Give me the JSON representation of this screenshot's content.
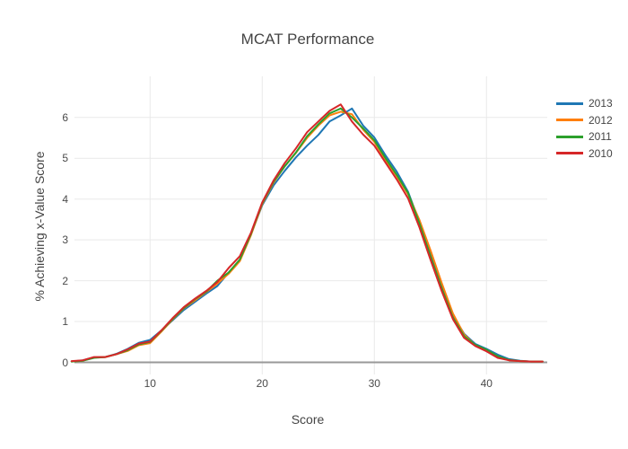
{
  "chart_data": {
    "type": "line",
    "title": "MCAT Performance",
    "xlabel": "Score",
    "ylabel": "% Achieving x-Value Score",
    "legend_position": "right",
    "grid": true,
    "xlim": [
      2.6,
      45.6
    ],
    "ylim": [
      -0.3,
      7.0
    ],
    "xticks": [
      10,
      20,
      30,
      40
    ],
    "yticks": [
      0,
      1,
      2,
      3,
      4,
      5,
      6
    ],
    "colors": {
      "background": "#ffffff",
      "grid": "#e9e9e9",
      "zero_line": "#999999",
      "text": "#444444"
    },
    "x": [
      3,
      4,
      5,
      6,
      7,
      8,
      9,
      10,
      11,
      12,
      13,
      14,
      15,
      16,
      17,
      18,
      19,
      20,
      21,
      22,
      23,
      24,
      25,
      26,
      27,
      28,
      29,
      30,
      31,
      32,
      33,
      34,
      35,
      36,
      37,
      38,
      39,
      40,
      41,
      42,
      43,
      44,
      45
    ],
    "series": [
      {
        "name": "2013",
        "color": "#1f77b4",
        "values": [
          0.02,
          0.05,
          0.12,
          0.13,
          0.21,
          0.33,
          0.48,
          0.55,
          0.78,
          1.03,
          1.28,
          1.48,
          1.68,
          1.87,
          2.2,
          2.5,
          3.15,
          3.85,
          4.33,
          4.69,
          5.02,
          5.31,
          5.57,
          5.9,
          6.05,
          6.22,
          5.8,
          5.51,
          5.07,
          4.67,
          4.18,
          3.45,
          2.65,
          1.85,
          1.15,
          0.7,
          0.45,
          0.33,
          0.19,
          0.08,
          0.04,
          0.02,
          0.02
        ]
      },
      {
        "name": "2012",
        "color": "#ff7f0e",
        "values": [
          0.02,
          0.04,
          0.12,
          0.13,
          0.2,
          0.28,
          0.42,
          0.47,
          0.75,
          1.05,
          1.32,
          1.52,
          1.72,
          1.93,
          2.17,
          2.48,
          3.12,
          3.88,
          4.4,
          4.8,
          5.13,
          5.5,
          5.8,
          6.05,
          6.14,
          6.08,
          5.7,
          5.4,
          4.96,
          4.56,
          4.12,
          3.5,
          2.75,
          1.95,
          1.2,
          0.68,
          0.42,
          0.3,
          0.14,
          0.05,
          0.03,
          0.02,
          0.02
        ]
      },
      {
        "name": "2011",
        "color": "#2ca02c",
        "values": [
          0.02,
          0.04,
          0.11,
          0.13,
          0.2,
          0.3,
          0.44,
          0.5,
          0.77,
          1.06,
          1.33,
          1.55,
          1.73,
          2.0,
          2.2,
          2.52,
          3.15,
          3.9,
          4.42,
          4.8,
          5.14,
          5.54,
          5.83,
          6.1,
          6.22,
          6.0,
          5.73,
          5.44,
          5.0,
          4.59,
          4.15,
          3.42,
          2.6,
          1.82,
          1.1,
          0.64,
          0.43,
          0.31,
          0.15,
          0.06,
          0.03,
          0.02,
          0.02
        ]
      },
      {
        "name": "2010",
        "color": "#d62728",
        "values": [
          0.03,
          0.05,
          0.13,
          0.13,
          0.2,
          0.32,
          0.46,
          0.51,
          0.78,
          1.08,
          1.35,
          1.56,
          1.75,
          1.97,
          2.31,
          2.6,
          3.18,
          3.92,
          4.45,
          4.88,
          5.24,
          5.64,
          5.9,
          6.16,
          6.32,
          5.9,
          5.58,
          5.31,
          4.89,
          4.48,
          4.02,
          3.32,
          2.52,
          1.75,
          1.06,
          0.6,
          0.4,
          0.27,
          0.11,
          0.05,
          0.03,
          0.02,
          0.02
        ]
      }
    ]
  }
}
